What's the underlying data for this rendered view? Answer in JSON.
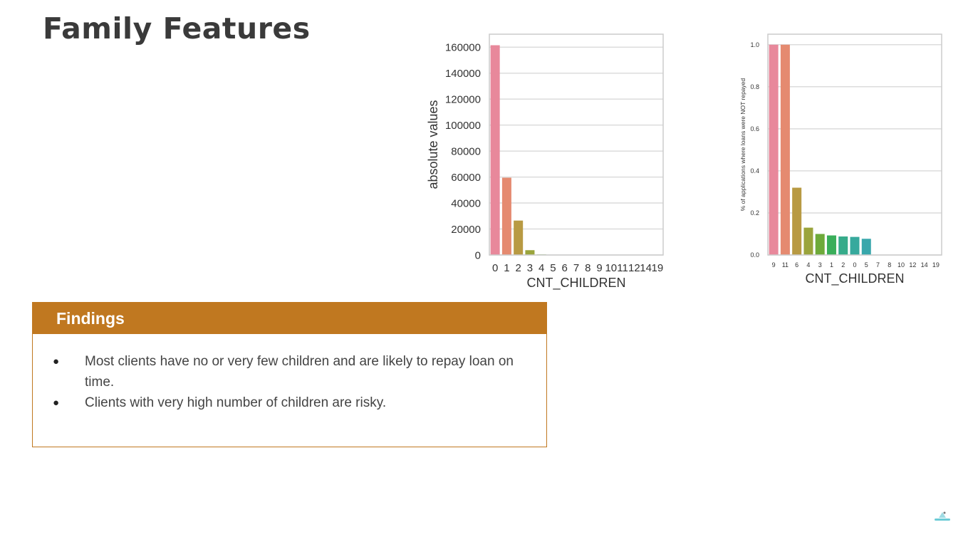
{
  "slide": {
    "title": "Family Features"
  },
  "chart_data": [
    {
      "type": "bar",
      "title": "",
      "xlabel": "CNT_CHILDREN",
      "ylabel": "absolute values",
      "categories": [
        "0",
        "1",
        "2",
        "3",
        "4",
        "5",
        "6",
        "7",
        "8",
        "9",
        "10",
        "11",
        "12",
        "14",
        "19"
      ],
      "values": [
        161500,
        59500,
        26500,
        3700,
        430,
        85,
        21,
        7,
        2,
        9,
        2,
        1,
        2,
        3,
        2
      ],
      "yticks": [
        0,
        20000,
        40000,
        60000,
        80000,
        100000,
        120000,
        140000,
        160000
      ],
      "ylim": [
        0,
        170000
      ],
      "grid": true,
      "colors": [
        "#e8889b",
        "#e58a70",
        "#b89a43",
        "#9aa43c",
        "#6eaa3a",
        "#3aae5a",
        "#36ab8a",
        "#37a99d",
        "#38a7ab",
        "#3aa4bd",
        "#3ba0d5",
        "#7a98e0",
        "#a68de6",
        "#d585df",
        "#e486bf"
      ]
    },
    {
      "type": "bar",
      "title": "",
      "xlabel": "CNT_CHILDREN",
      "ylabel": "% of applications where loans were NOT repayed",
      "categories": [
        "9",
        "11",
        "6",
        "4",
        "3",
        "1",
        "2",
        "0",
        "5",
        "7",
        "8",
        "10",
        "12",
        "14",
        "19"
      ],
      "values": [
        1.0,
        1.0,
        0.32,
        0.13,
        0.1,
        0.093,
        0.088,
        0.086,
        0.077,
        0,
        0,
        0,
        0,
        0,
        0
      ],
      "yticks": [
        0.0,
        0.2,
        0.4,
        0.6,
        0.8,
        1.0
      ],
      "ylim": [
        0,
        1.05
      ],
      "grid": true,
      "colors": [
        "#e8889b",
        "#e58a70",
        "#b89a43",
        "#9aa43c",
        "#6eaa3a",
        "#3aae5a",
        "#36ab8a",
        "#37a99d",
        "#38a7ab",
        "#3aa4bd",
        "#3ba0d5",
        "#7a98e0",
        "#a68de6",
        "#d585df",
        "#e486bf"
      ]
    }
  ],
  "findings": {
    "title": "Findings",
    "items": [
      "Most clients have no or very few children and are likely to repay loan on time.",
      "Clients with very high number of children are risky."
    ]
  },
  "colors": {
    "accent": "#c07820",
    "title": "#3a3a3a"
  }
}
